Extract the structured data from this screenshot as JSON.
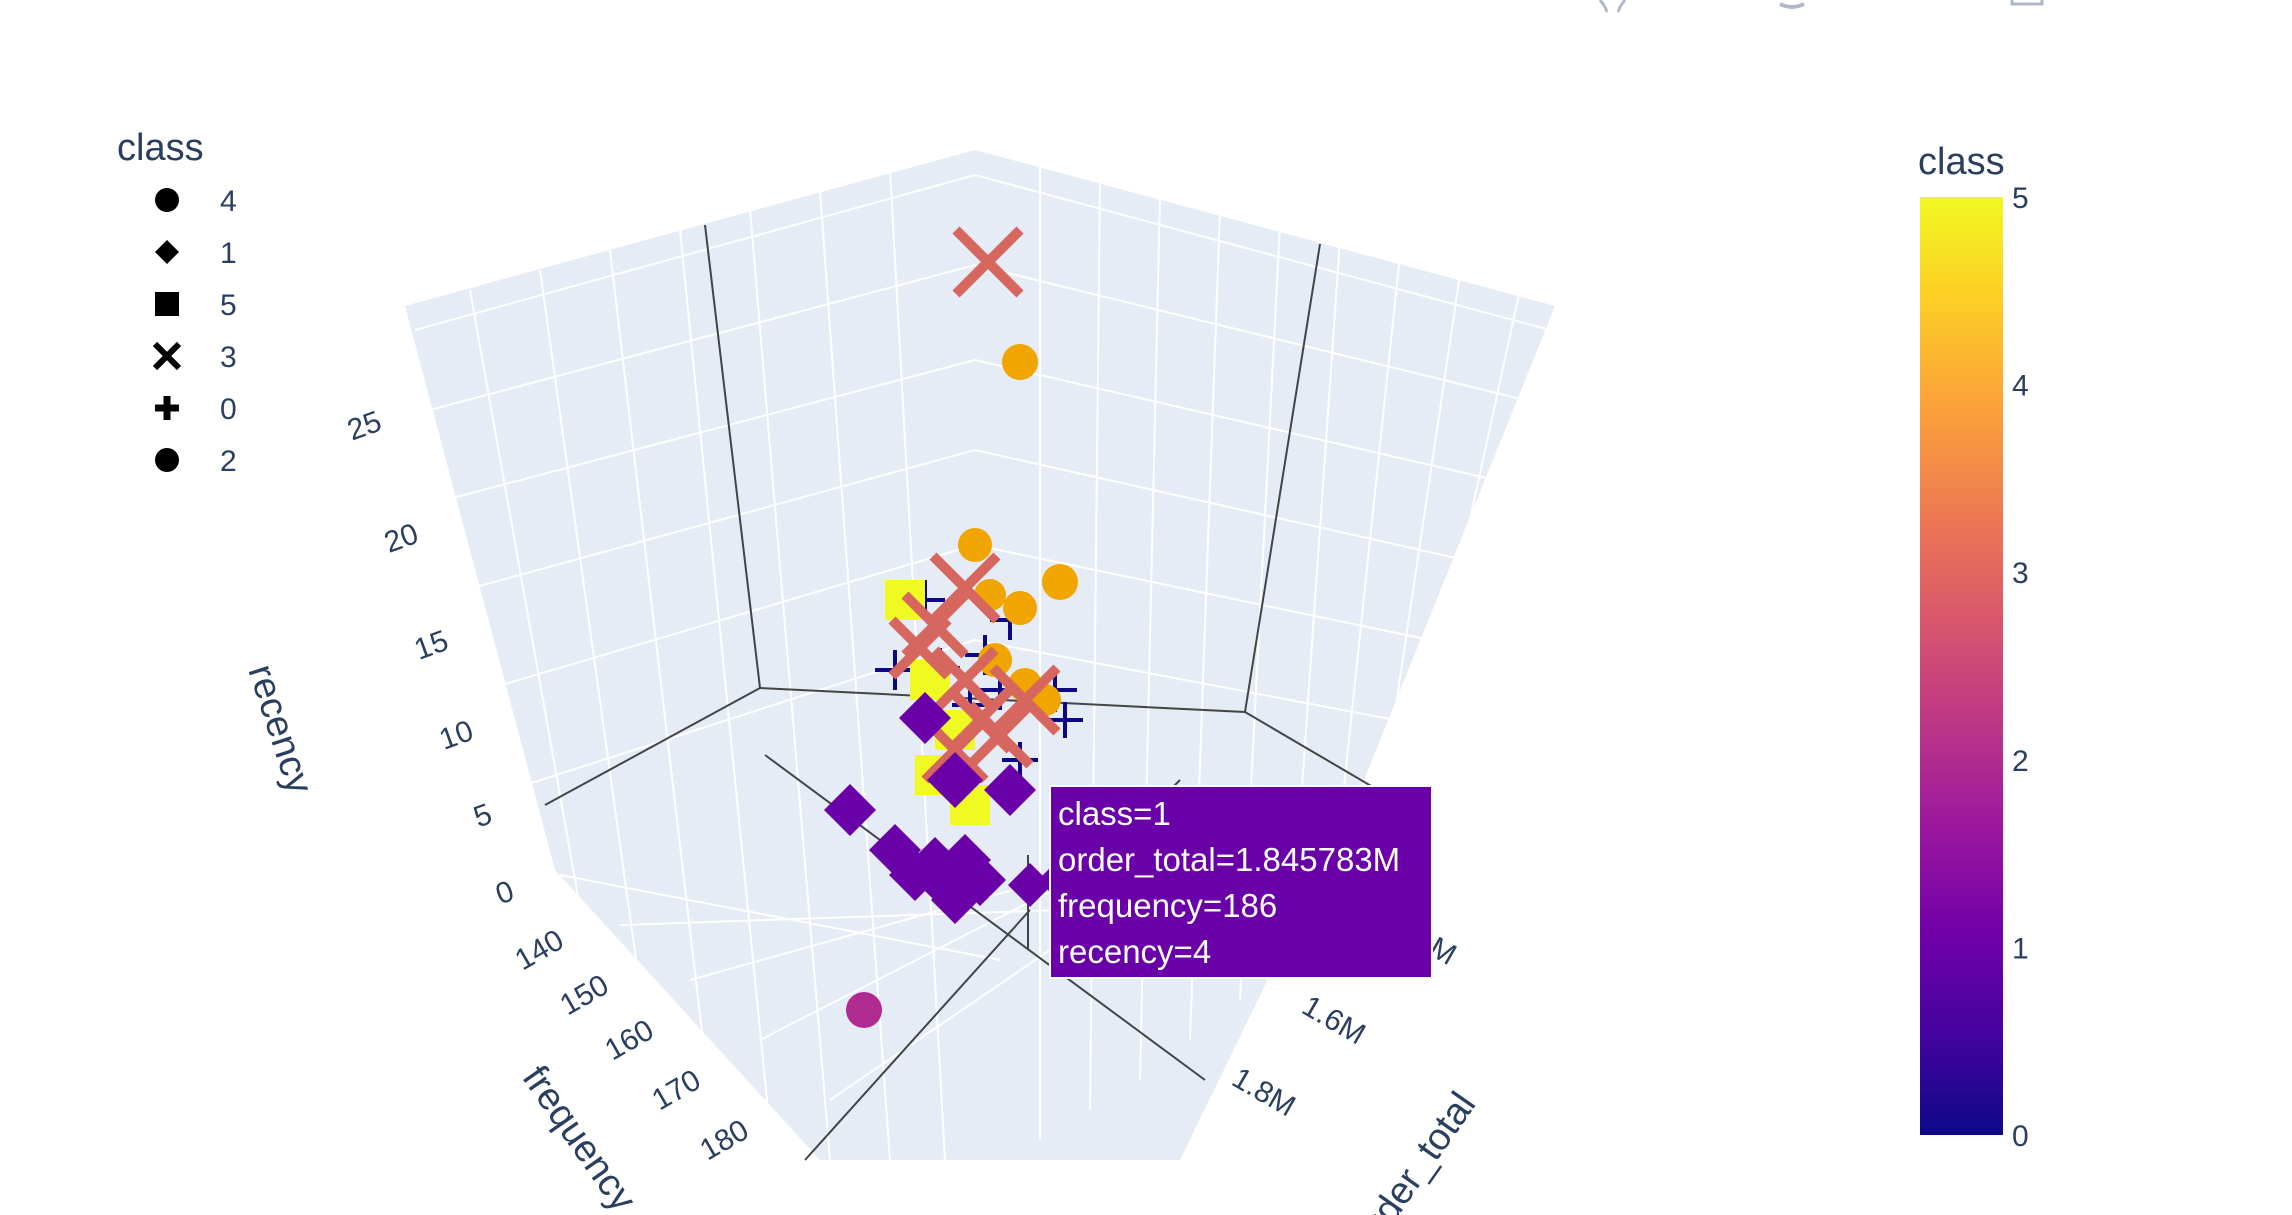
{
  "chart_data": {
    "type": "scatter",
    "dimensions": "3d",
    "axes": {
      "x": {
        "title": "order_total",
        "ticks": [
          "1.6M",
          "1.8M"
        ]
      },
      "y": {
        "title": "frequency",
        "ticks": [
          "140",
          "150",
          "160",
          "170",
          "180"
        ]
      },
      "z": {
        "title": "recency",
        "ticks": [
          "0",
          "5",
          "10",
          "15",
          "20",
          "25"
        ]
      }
    },
    "color_attribute": "class",
    "colorbar": {
      "title": "class",
      "ticks": [
        "0",
        "1",
        "2",
        "3",
        "4",
        "5"
      ],
      "range": [
        0,
        5
      ]
    },
    "legend": {
      "title": "class",
      "placement": "top-left",
      "entries": [
        {
          "label": "4",
          "symbol": "circle"
        },
        {
          "label": "1",
          "symbol": "diamond"
        },
        {
          "label": "5",
          "symbol": "square"
        },
        {
          "label": "3",
          "symbol": "x"
        },
        {
          "label": "0",
          "symbol": "cross"
        },
        {
          "label": "2",
          "symbol": "circle"
        }
      ]
    },
    "colors": {
      "class_0": "#0d0887",
      "class_1": "#6a00a8",
      "class_2": "#b12a90",
      "class_3": "#d6665e",
      "class_4": "#f0a500",
      "class_5": "#f0f921"
    },
    "hovered_point": {
      "class": 1,
      "order_total": 1845783,
      "frequency": 186,
      "recency": 4
    }
  },
  "tooltip": {
    "lines": [
      "class=1",
      "order_total=1.845783M",
      "frequency=186",
      "recency=4"
    ]
  },
  "toolbar": {
    "icons": [
      "zoom-icon",
      "pan-icon",
      "camera-icon"
    ]
  }
}
